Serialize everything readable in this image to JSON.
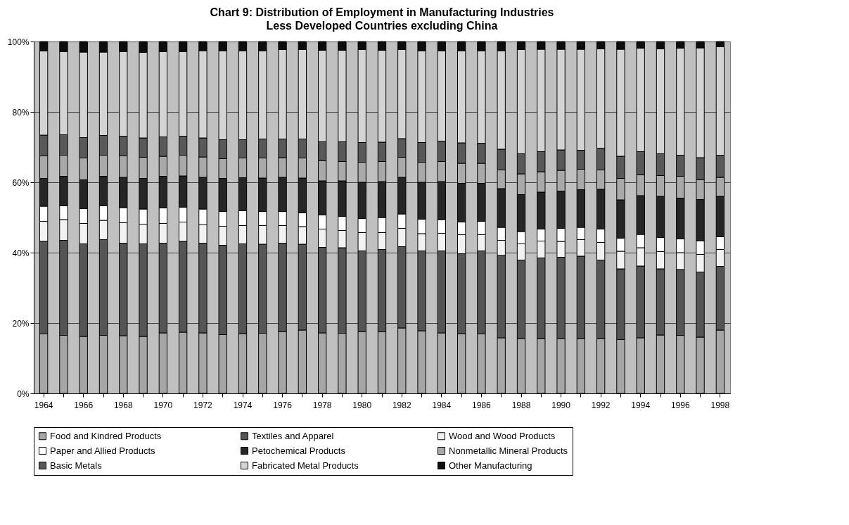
{
  "chart_data": {
    "type": "bar",
    "stacked": true,
    "title": "Chart 9: Distribution of Employment in Manufacturing Industries",
    "subtitle": "Less Developed Countries excluding China",
    "categories": [
      "1964",
      null,
      "1966",
      null,
      "1968",
      null,
      "1970",
      null,
      "1972",
      null,
      "1974",
      null,
      "1976",
      null,
      "1978",
      null,
      "1980",
      null,
      "1982",
      null,
      "1984",
      null,
      "1986",
      null,
      "1988",
      null,
      "1990",
      null,
      "1992",
      null,
      "1994",
      null,
      "1996",
      null,
      "1998"
    ],
    "ylim": [
      0,
      100
    ],
    "yticks": [
      {
        "value": 0,
        "label": "0%"
      },
      {
        "value": 20,
        "label": "20%"
      },
      {
        "value": 40,
        "label": "40%"
      },
      {
        "value": 60,
        "label": "60%"
      },
      {
        "value": 80,
        "label": "80%"
      },
      {
        "value": 100,
        "label": "100%"
      }
    ],
    "grid": "y",
    "legend": "bottom",
    "series": [
      {
        "name": "Food and Kindred Products",
        "color": "#a6a6a6",
        "values": [
          16.9,
          16.5,
          16.2,
          16.5,
          16.4,
          16.2,
          17.2,
          17.4,
          17.2,
          16.7,
          17.0,
          17.1,
          17.5,
          18.0,
          17.2,
          17.1,
          17.5,
          17.5,
          18.6,
          17.8,
          17.2,
          17.0,
          16.9,
          15.8,
          15.5,
          15.6,
          15.5,
          15.5,
          15.6,
          15.3,
          15.8,
          16.6,
          16.5,
          16.0,
          18.0
        ]
      },
      {
        "name": "Textiles and Apparel",
        "color": "#555555",
        "values": [
          26.3,
          27.0,
          26.3,
          27.2,
          26.3,
          26.3,
          25.5,
          25.8,
          25.5,
          25.4,
          25.5,
          25.3,
          25.2,
          24.4,
          24.3,
          24.3,
          23.0,
          23.4,
          23.1,
          22.7,
          23.3,
          22.7,
          23.6,
          23.4,
          22.4,
          22.9,
          23.2,
          23.5,
          22.3,
          20.1,
          20.4,
          18.8,
          18.7,
          18.5,
          18.1
        ]
      },
      {
        "name": "Wood and Wood Products",
        "color": "#f2f2f2",
        "values": [
          5.7,
          5.9,
          5.8,
          5.5,
          5.8,
          5.6,
          5.6,
          5.5,
          5.2,
          5.4,
          5.2,
          5.3,
          5.0,
          5.0,
          5.2,
          4.9,
          5.2,
          4.8,
          5.2,
          4.9,
          5.0,
          5.4,
          4.6,
          4.3,
          4.6,
          4.8,
          4.5,
          4.7,
          5.0,
          5.0,
          5.2,
          4.9,
          4.8,
          5.0,
          4.8
        ]
      },
      {
        "name": "Paper and Allied Products",
        "color": "#ffffff",
        "values": [
          4.3,
          3.9,
          4.2,
          4.1,
          4.3,
          4.3,
          4.4,
          4.2,
          4.5,
          4.2,
          4.2,
          4.0,
          4.0,
          3.9,
          4.0,
          4.0,
          4.0,
          4.3,
          4.1,
          4.1,
          3.9,
          3.6,
          3.8,
          3.7,
          3.5,
          3.4,
          3.7,
          3.5,
          3.8,
          3.7,
          3.8,
          4.0,
          3.9,
          3.9,
          3.6
        ]
      },
      {
        "name": "Petochemical Products",
        "color": "#262626",
        "values": [
          7.9,
          8.4,
          8.2,
          8.4,
          8.6,
          8.7,
          9.0,
          8.9,
          9.0,
          9.4,
          9.4,
          9.5,
          9.7,
          9.9,
          9.7,
          10.1,
          10.3,
          10.2,
          10.4,
          10.5,
          10.8,
          11.0,
          10.8,
          11.0,
          10.5,
          10.5,
          10.6,
          10.7,
          11.3,
          10.9,
          11.0,
          11.7,
          11.6,
          11.7,
          11.5
        ]
      },
      {
        "name": "Nonmetallic Mineral Products",
        "color": "#a9a9a9",
        "values": [
          6.4,
          6.0,
          6.2,
          6.0,
          6.1,
          6.0,
          5.7,
          5.9,
          5.8,
          5.6,
          5.6,
          5.7,
          5.6,
          5.7,
          5.7,
          5.5,
          5.7,
          5.7,
          5.7,
          5.7,
          5.7,
          5.7,
          5.7,
          5.3,
          5.9,
          5.8,
          5.9,
          5.8,
          5.5,
          6.1,
          6.0,
          5.9,
          6.2,
          5.6,
          5.4
        ]
      },
      {
        "name": "Basic Metals",
        "color": "#595959",
        "values": [
          5.9,
          5.8,
          5.8,
          5.6,
          5.6,
          5.5,
          5.5,
          5.4,
          5.4,
          5.4,
          5.2,
          5.4,
          5.3,
          5.4,
          5.4,
          5.6,
          5.6,
          5.5,
          5.3,
          5.6,
          5.8,
          5.8,
          5.7,
          5.9,
          5.7,
          5.7,
          5.8,
          5.4,
          6.2,
          6.3,
          6.5,
          6.2,
          6.0,
          6.3,
          6.3
        ]
      },
      {
        "name": "Fabricated Metal Products",
        "color": "#d4d4d4",
        "values": [
          23.9,
          23.6,
          24.3,
          23.7,
          24.0,
          24.3,
          24.2,
          24.0,
          24.8,
          25.3,
          25.3,
          25.1,
          25.4,
          25.4,
          26.0,
          26.0,
          26.4,
          26.1,
          25.3,
          26.1,
          25.7,
          26.2,
          26.3,
          28.0,
          29.6,
          29.1,
          28.6,
          28.7,
          28.2,
          30.4,
          29.4,
          29.8,
          30.4,
          31.2,
          30.8
        ]
      },
      {
        "name": "Other Manufacturing",
        "color": "#0d0d0d",
        "values": [
          2.7,
          2.9,
          3.0,
          3.0,
          2.9,
          3.1,
          2.9,
          2.9,
          2.6,
          2.6,
          2.6,
          2.6,
          2.3,
          2.3,
          2.5,
          2.5,
          2.3,
          2.5,
          2.3,
          2.6,
          2.6,
          2.6,
          2.6,
          2.6,
          2.3,
          2.2,
          2.2,
          2.2,
          2.1,
          2.2,
          1.9,
          2.1,
          1.9,
          1.8,
          1.5
        ]
      }
    ]
  }
}
